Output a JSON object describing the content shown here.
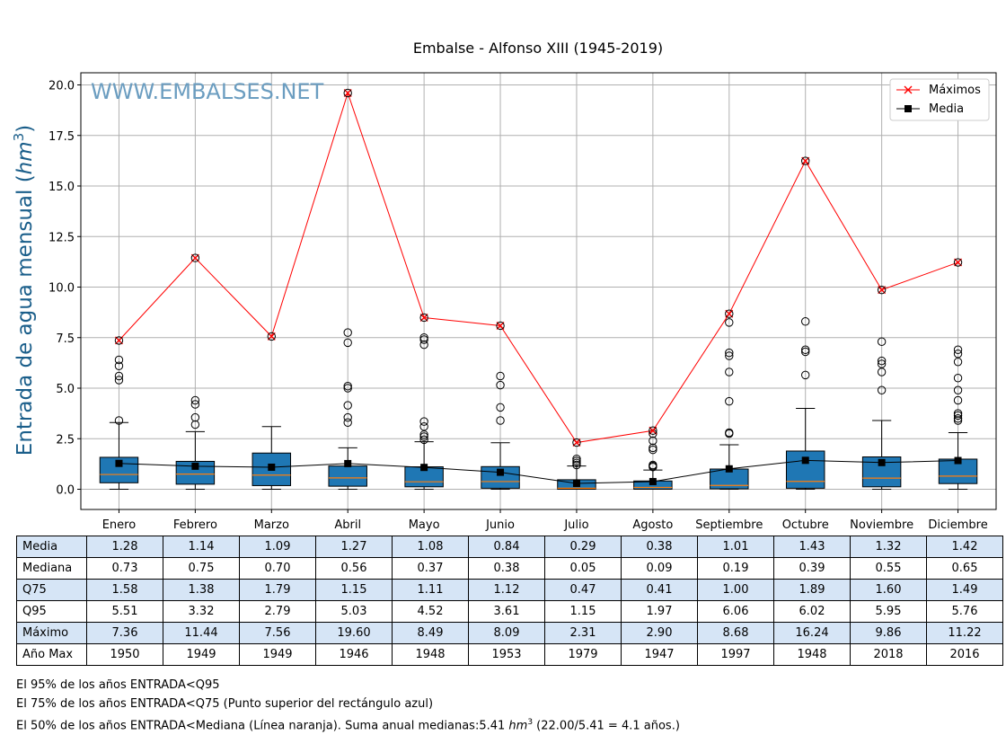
{
  "chart_data": {
    "type": "box",
    "title": "Embalse - Alfonso XIII (1945-2019)",
    "ylabel": "Entrada de agua mensual",
    "ylabel_unit": "hm",
    "ylabel_unit_sup": "3",
    "watermark": "WWW.EMBALSES.NET",
    "ylim": [
      -1.0,
      20.6
    ],
    "yticks": [
      0.0,
      2.5,
      5.0,
      7.5,
      10.0,
      12.5,
      15.0,
      17.5,
      20.0
    ],
    "ytick_labels": [
      "0.0",
      "2.5",
      "5.0",
      "7.5",
      "10.0",
      "12.5",
      "15.0",
      "17.5",
      "20.0"
    ],
    "grid": true,
    "legend_position": "top-right",
    "categories": [
      "Enero",
      "Febrero",
      "Marzo",
      "Abril",
      "Mayo",
      "Junio",
      "Julio",
      "Agosto",
      "Septiembre",
      "Octubre",
      "Noviembre",
      "Diciembre"
    ],
    "boxes": [
      {
        "q1": 0.32,
        "median": 0.73,
        "q3": 1.58,
        "whisker_low": 0.0,
        "whisker_high": 3.3,
        "outliers": [
          3.4,
          5.4,
          5.6,
          6.1,
          6.4
        ]
      },
      {
        "q1": 0.25,
        "median": 0.75,
        "q3": 1.38,
        "whisker_low": 0.0,
        "whisker_high": 2.85,
        "outliers": [
          3.2,
          3.55,
          4.2,
          4.4
        ]
      },
      {
        "q1": 0.18,
        "median": 0.7,
        "q3": 1.79,
        "whisker_low": 0.0,
        "whisker_high": 3.1,
        "outliers": []
      },
      {
        "q1": 0.15,
        "median": 0.56,
        "q3": 1.15,
        "whisker_low": 0.0,
        "whisker_high": 2.05,
        "outliers": [
          3.3,
          3.55,
          4.15,
          5.0,
          5.1,
          7.25,
          7.75
        ]
      },
      {
        "q1": 0.12,
        "median": 0.37,
        "q3": 1.11,
        "whisker_low": 0.0,
        "whisker_high": 2.35,
        "outliers": [
          2.45,
          2.6,
          2.7,
          3.1,
          3.35,
          7.15,
          7.4,
          7.5
        ]
      },
      {
        "q1": 0.05,
        "median": 0.38,
        "q3": 1.12,
        "whisker_low": 0.0,
        "whisker_high": 2.3,
        "outliers": [
          3.4,
          4.05,
          5.15,
          5.6
        ]
      },
      {
        "q1": 0.0,
        "median": 0.05,
        "q3": 0.47,
        "whisker_low": 0.0,
        "whisker_high": 1.15,
        "outliers": [
          1.2,
          1.3,
          1.4,
          1.5
        ]
      },
      {
        "q1": 0.0,
        "median": 0.09,
        "q3": 0.41,
        "whisker_low": 0.0,
        "whisker_high": 0.95,
        "outliers": [
          1.1,
          1.15,
          1.2,
          1.95,
          2.05,
          2.4,
          2.75
        ]
      },
      {
        "q1": 0.02,
        "median": 0.19,
        "q3": 1.0,
        "whisker_low": 0.0,
        "whisker_high": 2.2,
        "outliers": [
          2.75,
          2.8,
          4.35,
          5.8,
          6.6,
          6.75,
          8.25
        ]
      },
      {
        "q1": 0.05,
        "median": 0.39,
        "q3": 1.89,
        "whisker_low": 0.0,
        "whisker_high": 4.0,
        "outliers": [
          5.65,
          6.8,
          6.9,
          8.3
        ]
      },
      {
        "q1": 0.12,
        "median": 0.55,
        "q3": 1.6,
        "whisker_low": 0.0,
        "whisker_high": 3.4,
        "outliers": [
          4.9,
          5.8,
          6.2,
          6.35,
          7.3
        ]
      },
      {
        "q1": 0.28,
        "median": 0.65,
        "q3": 1.49,
        "whisker_low": 0.0,
        "whisker_high": 2.8,
        "outliers": [
          3.4,
          3.5,
          3.65,
          3.75,
          4.4,
          4.9,
          5.5,
          6.3,
          6.7,
          6.9
        ]
      }
    ],
    "series": [
      {
        "name": "Máximos",
        "values": [
          7.36,
          11.44,
          7.56,
          19.6,
          8.49,
          8.09,
          2.31,
          2.9,
          8.68,
          16.24,
          9.86,
          11.22
        ],
        "color": "#ff0000",
        "marker": "x"
      },
      {
        "name": "Media",
        "values": [
          1.28,
          1.14,
          1.09,
          1.27,
          1.08,
          0.84,
          0.29,
          0.38,
          1.01,
          1.43,
          1.32,
          1.42
        ],
        "color": "#000000",
        "marker": "square"
      }
    ],
    "colors": {
      "box_fill": "#1f77b4",
      "median_line": "#ff7f0e",
      "grid": "#b0b0b0",
      "watermark": "#6b9dc0",
      "ylabel": "#1a5e8a"
    }
  },
  "table": {
    "rows": [
      {
        "label": "Media",
        "values": [
          "1.28",
          "1.14",
          "1.09",
          "1.27",
          "1.08",
          "0.84",
          "0.29",
          "0.38",
          "1.01",
          "1.43",
          "1.32",
          "1.42"
        ],
        "shaded": true
      },
      {
        "label": "Mediana",
        "values": [
          "0.73",
          "0.75",
          "0.70",
          "0.56",
          "0.37",
          "0.38",
          "0.05",
          "0.09",
          "0.19",
          "0.39",
          "0.55",
          "0.65"
        ],
        "shaded": false
      },
      {
        "label": "Q75",
        "values": [
          "1.58",
          "1.38",
          "1.79",
          "1.15",
          "1.11",
          "1.12",
          "0.47",
          "0.41",
          "1.00",
          "1.89",
          "1.60",
          "1.49"
        ],
        "shaded": true
      },
      {
        "label": "Q95",
        "values": [
          "5.51",
          "3.32",
          "2.79",
          "5.03",
          "4.52",
          "3.61",
          "1.15",
          "1.97",
          "6.06",
          "6.02",
          "5.95",
          "5.76"
        ],
        "shaded": false
      },
      {
        "label": "Máximo",
        "values": [
          "7.36",
          "11.44",
          "7.56",
          "19.60",
          "8.49",
          "8.09",
          "2.31",
          "2.90",
          "8.68",
          "16.24",
          "9.86",
          "11.22"
        ],
        "shaded": true
      },
      {
        "label": "Año Max",
        "values": [
          "1950",
          "1949",
          "1949",
          "1946",
          "1948",
          "1953",
          "1979",
          "1947",
          "1997",
          "1948",
          "2018",
          "2016"
        ],
        "shaded": false
      }
    ]
  },
  "notes": {
    "line1": "El 95% de los años ENTRADA<Q95",
    "line2": "El 75% de los años ENTRADA<Q75 (Punto superior del rectángulo azul)",
    "line3_pre": "El 50% de los años ENTRADA<Mediana (Línea naranja). Suma anual medianas:5.41 ",
    "line3_unit": "hm",
    "line3_sup": "3",
    "line3_post": " (22.00/5.41 = 4.1 años.)"
  }
}
